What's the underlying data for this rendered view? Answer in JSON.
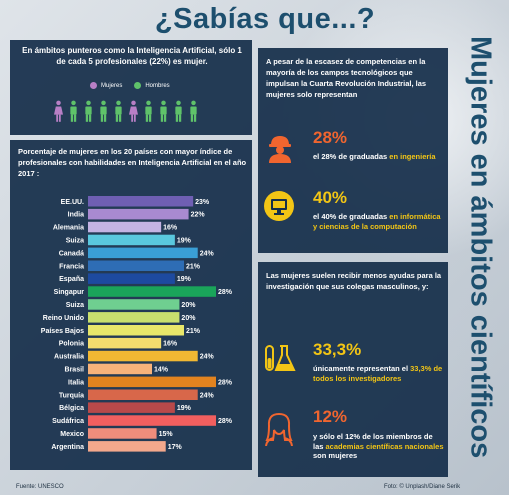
{
  "header": {
    "title": "¿Sabías que...?",
    "side_title": "Mujeres en ámbitos científicos"
  },
  "ai_panel": {
    "text": "En ámbitos punteros como la Inteligencia Artificial, sólo 1 de cada 5 profesionales (22%) es mujer.",
    "legend": [
      {
        "label": "Mujeres",
        "color": "#b87fc6"
      },
      {
        "label": "Hombres",
        "color": "#5fc26a"
      }
    ],
    "people": [
      "women",
      "men",
      "men",
      "men",
      "men",
      "women",
      "men",
      "men",
      "men",
      "men"
    ]
  },
  "chart_panel": {
    "chart_title": "Porcentaje de mujeres en los 20 países con mayor índice de profesionales con habilidades en Inteligencia Artificial en el año 2017 :"
  },
  "chart_data": {
    "type": "bar",
    "orientation": "horizontal",
    "title": "Porcentaje de mujeres en los 20 países con mayor índice de profesionales con habilidades en Inteligencia Artificial en el año 2017 :",
    "categories": [
      "EE.UU.",
      "India",
      "Alemania",
      "Suiza",
      "Canadá",
      "Francia",
      "España",
      "Singapur",
      "Suiza",
      "Reino Unido",
      "Países Bajos",
      "Polonia",
      "Australia",
      "Brasil",
      "Italia",
      "Turquía",
      "Bélgica",
      "Sudáfrica",
      "Mexico",
      "Argentina"
    ],
    "values": [
      23,
      22,
      16,
      19,
      24,
      21,
      19,
      28,
      20,
      20,
      21,
      16,
      24,
      14,
      28,
      24,
      19,
      28,
      15,
      17
    ],
    "value_labels": [
      "23%",
      "22%",
      "16%",
      "19%",
      "24%",
      "21%",
      "19%",
      "28%",
      "20%",
      "20%",
      "21%",
      "16%",
      "24%",
      "14%",
      "28%",
      "24%",
      "19%",
      "28%",
      "15%",
      "17%"
    ],
    "colors": [
      "#6f5fb3",
      "#a98ad0",
      "#c4b3e3",
      "#5ac8de",
      "#3a9fd6",
      "#2e6db5",
      "#1d4aa0",
      "#1aa45a",
      "#6fcf90",
      "#c9e06e",
      "#e8e76a",
      "#f3dd6e",
      "#f1b833",
      "#f7b27a",
      "#e2831f",
      "#d8674a",
      "#b8494a",
      "#f25f5f",
      "#f08d7c",
      "#f3a88c"
    ],
    "xlim": [
      0,
      28
    ],
    "grid": false
  },
  "tech_panel": {
    "intro": "A pesar de la escasez de competencias en la mayoría de los campos tecnológicos que impulsan la Cuarta Revolución Industrial, las mujeres solo representan",
    "stats": [
      {
        "pct": "28%",
        "text_before": "el 28% de graduadas ",
        "highlight": "en ingeniería",
        "text_after": "",
        "icon": "engineer-icon"
      },
      {
        "pct": "40%",
        "text_before": "el 40% de graduadas ",
        "highlight": "en informática y ciencias de la computación",
        "text_after": "",
        "icon": "computer-icon"
      }
    ]
  },
  "research_panel": {
    "intro": "Las mujeres suelen recibir menos ayudas para la investigación que sus colegas masculinos, y:",
    "stats": [
      {
        "pct": "33,3%",
        "text_before": "únicamente representan el ",
        "highlight": "33,3% de todos los investigadores",
        "text_after": "",
        "icon": "flask-icon"
      },
      {
        "pct": "12%",
        "text_before": "y sólo el 12% de los miembros de las ",
        "highlight": "academias científicas nacionales",
        "text_after": " son mujeres",
        "icon": "woman-icon"
      }
    ]
  },
  "footer": {
    "source": "Fuente: UNESCO",
    "photo": "Foto: © Unplash/Diane Serik"
  },
  "colors": {
    "panel": "#152e4a",
    "title": "#1d4f6e",
    "accent_orange": "#f0652f",
    "accent_yellow": "#f2c515"
  }
}
